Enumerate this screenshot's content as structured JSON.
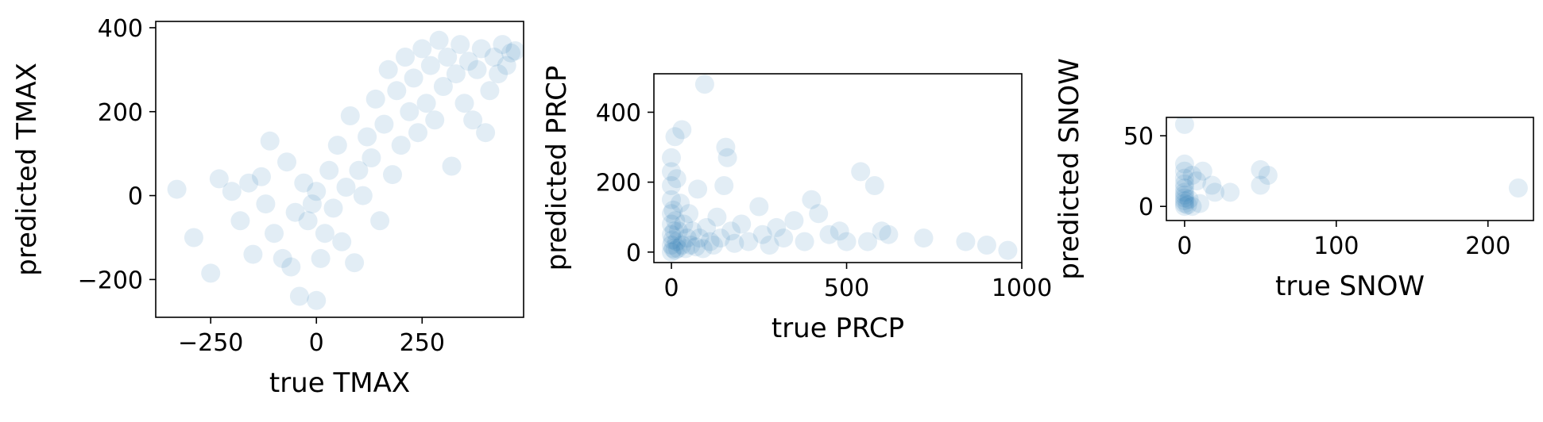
{
  "chart_data": [
    {
      "type": "scatter",
      "xlabel": "true TMAX",
      "ylabel": "predicted TMAX",
      "xlim": [
        -380,
        490
      ],
      "ylim": [
        -290,
        415
      ],
      "xticks": [
        -250,
        0,
        250
      ],
      "yticks": [
        -200,
        0,
        200,
        400
      ],
      "xtick_labels": [
        "−250",
        "0",
        "250"
      ],
      "ytick_labels": [
        "−200",
        "0",
        "200",
        "400"
      ],
      "color": "#1f77b4",
      "points": [
        [
          -330,
          15
        ],
        [
          -290,
          -100
        ],
        [
          -250,
          -185
        ],
        [
          -230,
          40
        ],
        [
          -200,
          10
        ],
        [
          -180,
          -60
        ],
        [
          -160,
          30
        ],
        [
          -150,
          -140
        ],
        [
          -130,
          45
        ],
        [
          -120,
          -20
        ],
        [
          -110,
          130
        ],
        [
          -100,
          -90
        ],
        [
          -80,
          -150
        ],
        [
          -70,
          80
        ],
        [
          -60,
          -170
        ],
        [
          -50,
          -40
        ],
        [
          -40,
          -240
        ],
        [
          -30,
          30
        ],
        [
          -20,
          -60
        ],
        [
          -10,
          -20
        ],
        [
          0,
          -250
        ],
        [
          0,
          10
        ],
        [
          10,
          -150
        ],
        [
          20,
          -90
        ],
        [
          30,
          60
        ],
        [
          40,
          -30
        ],
        [
          50,
          120
        ],
        [
          60,
          -110
        ],
        [
          70,
          20
        ],
        [
          80,
          190
        ],
        [
          90,
          -160
        ],
        [
          100,
          60
        ],
        [
          110,
          0
        ],
        [
          120,
          140
        ],
        [
          130,
          90
        ],
        [
          140,
          230
        ],
        [
          150,
          -60
        ],
        [
          160,
          170
        ],
        [
          170,
          300
        ],
        [
          180,
          50
        ],
        [
          190,
          250
        ],
        [
          200,
          120
        ],
        [
          210,
          330
        ],
        [
          220,
          200
        ],
        [
          230,
          280
        ],
        [
          240,
          150
        ],
        [
          250,
          350
        ],
        [
          260,
          220
        ],
        [
          270,
          310
        ],
        [
          280,
          180
        ],
        [
          290,
          370
        ],
        [
          300,
          260
        ],
        [
          310,
          330
        ],
        [
          320,
          70
        ],
        [
          330,
          290
        ],
        [
          340,
          360
        ],
        [
          350,
          220
        ],
        [
          360,
          320
        ],
        [
          370,
          180
        ],
        [
          380,
          300
        ],
        [
          390,
          350
        ],
        [
          400,
          150
        ],
        [
          410,
          250
        ],
        [
          420,
          330
        ],
        [
          430,
          290
        ],
        [
          440,
          360
        ],
        [
          450,
          310
        ],
        [
          460,
          340
        ],
        [
          470,
          345
        ]
      ]
    },
    {
      "type": "scatter",
      "xlabel": "true PRCP",
      "ylabel": "predicted PRCP",
      "xlim": [
        -50,
        1000
      ],
      "ylim": [
        -30,
        510
      ],
      "xticks": [
        0,
        500,
        1000
      ],
      "yticks": [
        0,
        200,
        400
      ],
      "xtick_labels": [
        "0",
        "500",
        "1000"
      ],
      "ytick_labels": [
        "0",
        "200",
        "400"
      ],
      "color": "#1f77b4",
      "points": [
        [
          0,
          0
        ],
        [
          0,
          20
        ],
        [
          0,
          50
        ],
        [
          0,
          80
        ],
        [
          0,
          110
        ],
        [
          0,
          150
        ],
        [
          0,
          190
        ],
        [
          0,
          230
        ],
        [
          0,
          270
        ],
        [
          3,
          35
        ],
        [
          5,
          10
        ],
        [
          5,
          120
        ],
        [
          8,
          60
        ],
        [
          10,
          5
        ],
        [
          10,
          330
        ],
        [
          12,
          90
        ],
        [
          15,
          30
        ],
        [
          15,
          210
        ],
        [
          18,
          10
        ],
        [
          20,
          60
        ],
        [
          25,
          140
        ],
        [
          30,
          20
        ],
        [
          30,
          350
        ],
        [
          35,
          80
        ],
        [
          40,
          10
        ],
        [
          45,
          40
        ],
        [
          50,
          110
        ],
        [
          55,
          20
        ],
        [
          60,
          60
        ],
        [
          70,
          15
        ],
        [
          75,
          180
        ],
        [
          80,
          40
        ],
        [
          90,
          10
        ],
        [
          95,
          480
        ],
        [
          100,
          70
        ],
        [
          110,
          30
        ],
        [
          120,
          20
        ],
        [
          130,
          100
        ],
        [
          140,
          40
        ],
        [
          150,
          190
        ],
        [
          155,
          300
        ],
        [
          160,
          270
        ],
        [
          170,
          60
        ],
        [
          180,
          25
        ],
        [
          200,
          80
        ],
        [
          220,
          30
        ],
        [
          250,
          130
        ],
        [
          260,
          50
        ],
        [
          280,
          20
        ],
        [
          300,
          70
        ],
        [
          320,
          40
        ],
        [
          350,
          90
        ],
        [
          380,
          30
        ],
        [
          400,
          150
        ],
        [
          420,
          110
        ],
        [
          450,
          50
        ],
        [
          480,
          60
        ],
        [
          500,
          30
        ],
        [
          540,
          230
        ],
        [
          560,
          30
        ],
        [
          580,
          190
        ],
        [
          600,
          60
        ],
        [
          620,
          50
        ],
        [
          720,
          40
        ],
        [
          840,
          30
        ],
        [
          900,
          20
        ],
        [
          960,
          5
        ]
      ]
    },
    {
      "type": "scatter",
      "xlabel": "true SNOW",
      "ylabel": "predicted SNOW",
      "xlim": [
        -12,
        230
      ],
      "ylim": [
        -10,
        63
      ],
      "xticks": [
        0,
        100,
        200
      ],
      "yticks": [
        0,
        50
      ],
      "xtick_labels": [
        "0",
        "100",
        "200"
      ],
      "ytick_labels": [
        "0",
        "50"
      ],
      "color": "#1f77b4",
      "points": [
        [
          0,
          0
        ],
        [
          0,
          2
        ],
        [
          0,
          4
        ],
        [
          0,
          6
        ],
        [
          0,
          8
        ],
        [
          0,
          10
        ],
        [
          0,
          13
        ],
        [
          0,
          16
        ],
        [
          0,
          20
        ],
        [
          0,
          25
        ],
        [
          0,
          30
        ],
        [
          0,
          58
        ],
        [
          2,
          1
        ],
        [
          3,
          5
        ],
        [
          5,
          0
        ],
        [
          5,
          22
        ],
        [
          8,
          18
        ],
        [
          10,
          2
        ],
        [
          12,
          25
        ],
        [
          18,
          15
        ],
        [
          20,
          10
        ],
        [
          30,
          10
        ],
        [
          50,
          26
        ],
        [
          50,
          15
        ],
        [
          55,
          22
        ],
        [
          220,
          13
        ]
      ]
    }
  ]
}
